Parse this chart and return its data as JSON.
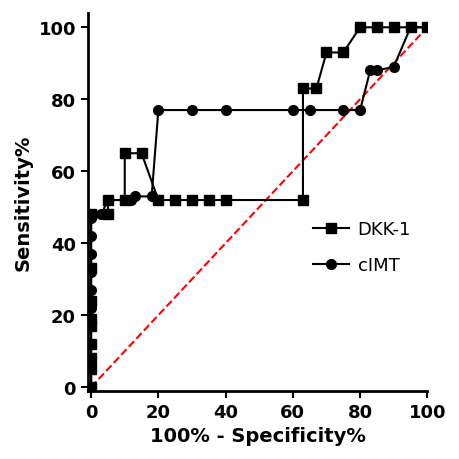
{
  "dkk1_x": [
    0,
    0,
    0,
    0,
    0,
    0,
    0,
    0,
    0,
    5,
    5,
    10,
    10,
    15,
    20,
    25,
    30,
    35,
    40,
    63,
    63,
    67,
    70,
    75,
    80,
    85,
    90,
    95,
    100
  ],
  "dkk1_y": [
    0,
    5,
    8,
    12,
    17,
    19,
    24,
    33,
    48,
    48,
    52,
    52,
    65,
    65,
    52,
    52,
    52,
    52,
    52,
    52,
    83,
    83,
    93,
    93,
    100,
    100,
    100,
    100,
    100
  ],
  "cimt_x": [
    0,
    0,
    0,
    0,
    0,
    0,
    0,
    0,
    0,
    0,
    0,
    3,
    5,
    12,
    13,
    18,
    20,
    30,
    40,
    60,
    65,
    75,
    80,
    83,
    85,
    90,
    95,
    100
  ],
  "cimt_y": [
    0,
    8,
    12,
    18,
    22,
    27,
    32,
    37,
    42,
    47,
    48,
    48,
    52,
    52,
    53,
    53,
    77,
    77,
    77,
    77,
    77,
    77,
    77,
    88,
    88,
    89,
    100,
    100
  ],
  "line_color": "#000000",
  "dkk1_marker": "s",
  "cimt_marker": "o",
  "marker_size": 7,
  "line_width": 1.5,
  "ref_color": "#ff0000",
  "xlabel": "100% - Specificity%",
  "ylabel": "Sensitivity%",
  "xlim": [
    -1,
    100
  ],
  "ylim": [
    -1,
    104
  ],
  "xticks": [
    0,
    20,
    40,
    60,
    80,
    100
  ],
  "yticks": [
    0,
    20,
    40,
    60,
    80,
    100
  ],
  "legend_dkk1": "DKK-1",
  "legend_cimt": "cIMT",
  "font_size": 13,
  "label_font_size": 14,
  "tick_font_size": 13
}
